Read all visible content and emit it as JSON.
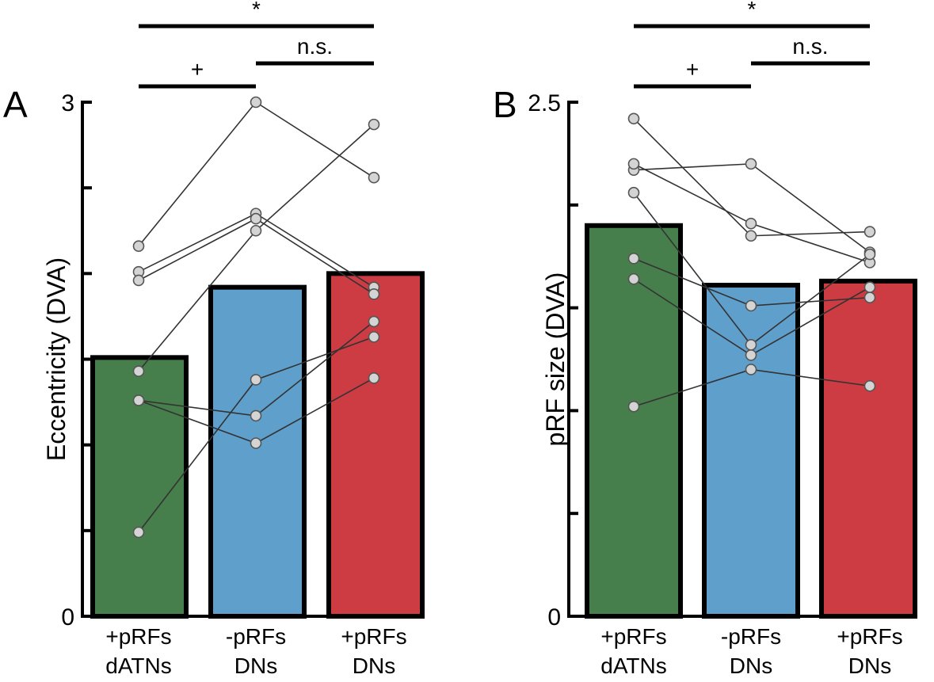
{
  "chart_data": [
    {
      "type": "bar",
      "panel": "A",
      "title": "",
      "xlabel": "",
      "ylabel": "Eccentricity (DVA)",
      "ylim": [
        0,
        3
      ],
      "yticks": [
        0,
        0.5,
        1,
        1.5,
        2,
        2.5,
        3
      ],
      "yticklabels": [
        "0",
        "",
        "",
        "",
        "",
        "",
        "3"
      ],
      "categories": [
        {
          "line1": "+pRFs",
          "line2": "dATNs"
        },
        {
          "line1": "-pRFs",
          "line2": "DNs"
        },
        {
          "line1": "+pRFs",
          "line2": "DNs"
        }
      ],
      "values": [
        1.51,
        1.92,
        2.0
      ],
      "colors": [
        "#467f4b",
        "#5f9fcc",
        "#cc3c42"
      ],
      "subjects": [
        [
          2.16,
          3.0,
          2.56
        ],
        [
          2.01,
          2.35,
          1.92
        ],
        [
          1.96,
          2.32,
          1.88
        ],
        [
          1.43,
          2.25,
          2.87
        ],
        [
          1.26,
          1.17,
          1.72
        ],
        [
          1.26,
          1.01,
          1.39
        ],
        [
          0.49,
          1.38,
          1.63
        ]
      ],
      "significance": [
        {
          "from": 0,
          "to": 2,
          "label": "*",
          "level": 3
        },
        {
          "from": 1,
          "to": 2,
          "label": "n.s.",
          "level": 2
        },
        {
          "from": 0,
          "to": 1,
          "label": "+",
          "level": 1
        }
      ]
    },
    {
      "type": "bar",
      "panel": "B",
      "title": "",
      "xlabel": "",
      "ylabel": "pRF size (DVA)",
      "ylim": [
        0,
        2.5
      ],
      "yticks": [
        0,
        0.5,
        1,
        1.5,
        2,
        2.5
      ],
      "yticklabels": [
        "0",
        "",
        "",
        "",
        "",
        "2.5"
      ],
      "categories": [
        {
          "line1": "+pRFs",
          "line2": "dATNs"
        },
        {
          "line1": "-pRFs",
          "line2": "DNs"
        },
        {
          "line1": "+pRFs",
          "line2": "DNs"
        }
      ],
      "values": [
        1.9,
        1.61,
        1.63
      ],
      "colors": [
        "#467f4b",
        "#5f9fcc",
        "#cc3c42"
      ],
      "subjects": [
        [
          2.42,
          1.85,
          1.87
        ],
        [
          2.17,
          2.2,
          1.77
        ],
        [
          2.2,
          1.91,
          1.72
        ],
        [
          2.06,
          1.32,
          1.76
        ],
        [
          1.74,
          1.51,
          1.55
        ],
        [
          1.64,
          1.27,
          1.6
        ],
        [
          1.02,
          1.2,
          1.12
        ]
      ],
      "significance": [
        {
          "from": 0,
          "to": 2,
          "label": "*",
          "level": 3
        },
        {
          "from": 1,
          "to": 2,
          "label": "n.s.",
          "level": 2
        },
        {
          "from": 0,
          "to": 1,
          "label": "+",
          "level": 1
        }
      ]
    }
  ]
}
